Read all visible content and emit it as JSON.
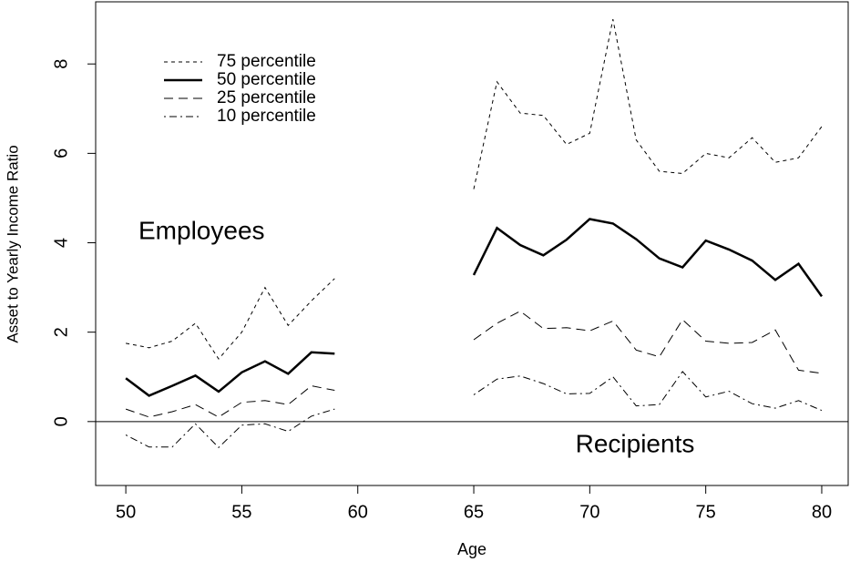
{
  "chart_data": {
    "type": "line",
    "x_label": "Age",
    "y_label": "Asset to Yearly Income Ratio",
    "x": [
      50,
      51,
      52,
      53,
      54,
      55,
      56,
      57,
      58,
      59,
      60,
      61,
      62,
      63,
      64,
      65,
      66,
      67,
      68,
      69,
      70,
      71,
      72,
      73,
      74,
      75,
      76,
      77,
      78,
      79,
      80
    ],
    "series": [
      {
        "name": "75 percentile",
        "color": "#000000",
        "dash": "4,4",
        "width": 1,
        "values": [
          1.75,
          1.65,
          1.8,
          2.2,
          1.4,
          2.0,
          3.0,
          2.15,
          2.7,
          3.2,
          null,
          null,
          null,
          null,
          null,
          5.2,
          7.6,
          6.9,
          6.85,
          6.2,
          6.45,
          9.0,
          6.3,
          5.6,
          5.55,
          6.0,
          5.9,
          6.35,
          5.8,
          5.9,
          6.6
        ]
      },
      {
        "name": "50 percentile",
        "color": "#000000",
        "dash": "none",
        "width": 2.5,
        "values": [
          0.97,
          0.58,
          0.8,
          1.03,
          0.67,
          1.1,
          1.35,
          1.07,
          1.55,
          1.52,
          null,
          null,
          null,
          null,
          null,
          3.28,
          4.33,
          3.95,
          3.72,
          4.07,
          4.53,
          4.43,
          4.08,
          3.65,
          3.45,
          4.05,
          3.85,
          3.6,
          3.17,
          3.53,
          2.8
        ]
      },
      {
        "name": "25 percentile",
        "color": "#000000",
        "dash": "10,6",
        "width": 1,
        "values": [
          0.28,
          0.1,
          0.22,
          0.38,
          0.1,
          0.43,
          0.47,
          0.38,
          0.8,
          0.7,
          null,
          null,
          null,
          null,
          null,
          1.83,
          2.2,
          2.47,
          2.08,
          2.1,
          2.03,
          2.25,
          1.6,
          1.45,
          2.28,
          1.8,
          1.75,
          1.77,
          2.05,
          1.15,
          1.08
        ]
      },
      {
        "name": "10 percentile",
        "color": "#000000",
        "dash": "2,4,8,4",
        "width": 1,
        "values": [
          -0.3,
          -0.57,
          -0.57,
          -0.05,
          -0.58,
          -0.08,
          -0.05,
          -0.22,
          0.12,
          0.28,
          null,
          null,
          null,
          null,
          null,
          0.6,
          0.95,
          1.02,
          0.85,
          0.62,
          0.63,
          1.0,
          0.35,
          0.38,
          1.12,
          0.55,
          0.68,
          0.4,
          0.3,
          0.47,
          0.25
        ]
      }
    ],
    "annotations": [
      "Employees",
      "Recipients"
    ],
    "hline": 0,
    "xlim": [
      48.7,
      81.14
    ],
    "ylim": [
      -1.43,
      9.39
    ],
    "xticks": [
      50,
      55,
      60,
      65,
      70,
      75,
      80
    ],
    "yticks": [
      0,
      2,
      4,
      6,
      8
    ],
    "legend": "top-left"
  }
}
